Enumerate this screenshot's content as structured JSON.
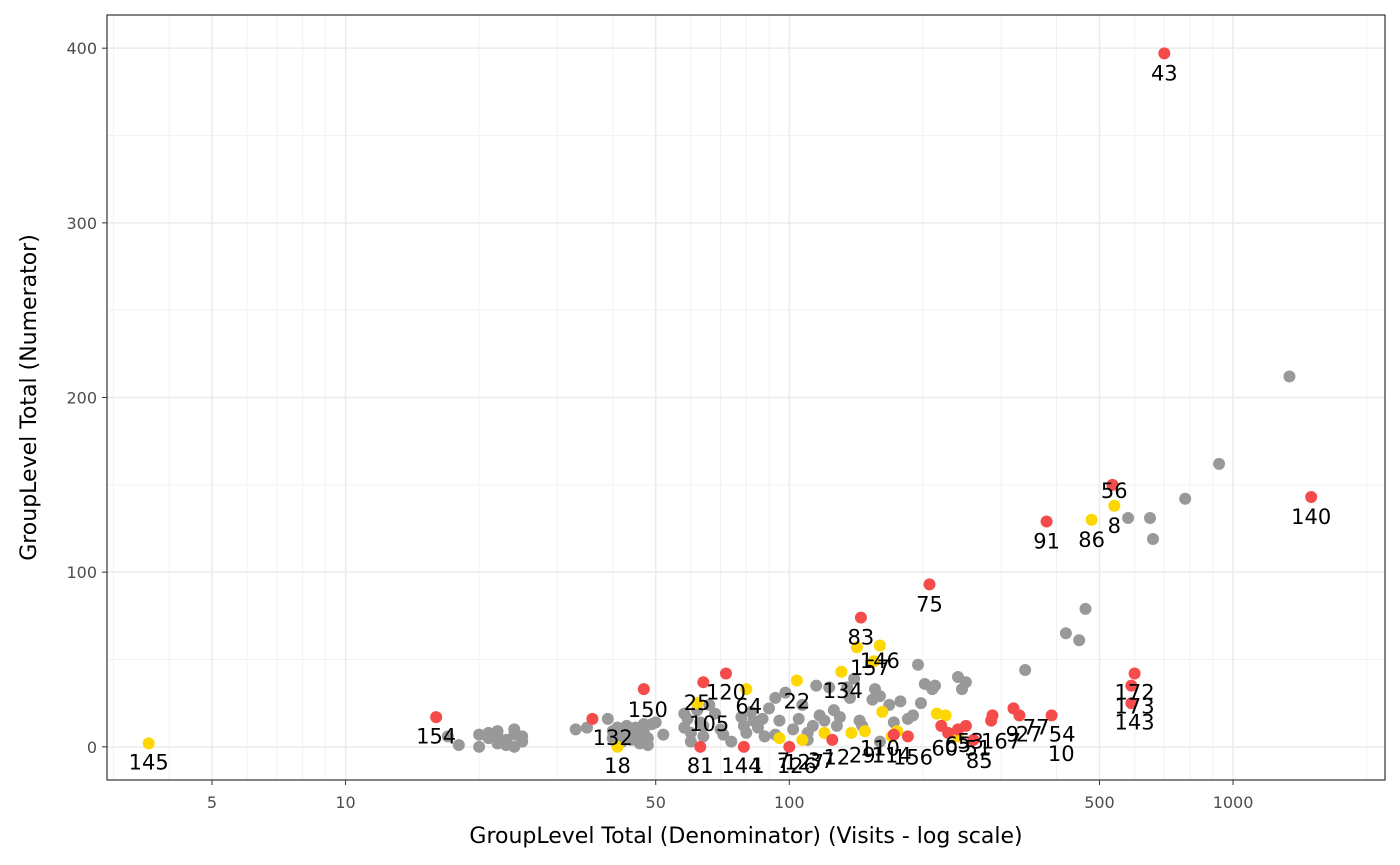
{
  "chart_data": {
    "type": "scatter",
    "title": "",
    "xlabel": "GroupLevel Total (Denominator) (Visits - log scale)",
    "ylabel": "GroupLevel Total (Numerator)",
    "x_scale": "log10",
    "xlim": [
      2.9,
      2200
    ],
    "ylim": [
      -19,
      419
    ],
    "x_ticks": [
      5,
      10,
      50,
      100,
      500,
      1000
    ],
    "x_tick_labels": [
      "5",
      "10",
      "50",
      "100",
      "500",
      "1000"
    ],
    "y_ticks": [
      0,
      100,
      200,
      300,
      400
    ],
    "y_tick_labels": [
      "0",
      "100",
      "200",
      "300",
      "400"
    ],
    "grid": true,
    "legend": "none",
    "colors": {
      "gray": "#999999",
      "yellow": "#FFD700",
      "red": "#F54B4B"
    },
    "series": [
      {
        "color_key": "gray",
        "points": [
          [
            20,
            7
          ],
          [
            20,
            0
          ],
          [
            21,
            5
          ],
          [
            21,
            8
          ],
          [
            22,
            2
          ],
          [
            22,
            6
          ],
          [
            22,
            9
          ],
          [
            23,
            4
          ],
          [
            23,
            1
          ],
          [
            24,
            7
          ],
          [
            24,
            0
          ],
          [
            24,
            10
          ],
          [
            25,
            3
          ],
          [
            25,
            6
          ],
          [
            17,
            6
          ],
          [
            18,
            1
          ],
          [
            33,
            10
          ],
          [
            35,
            11
          ],
          [
            39,
            16
          ],
          [
            40,
            9
          ],
          [
            40,
            5
          ],
          [
            41,
            11
          ],
          [
            42,
            7
          ],
          [
            42,
            3
          ],
          [
            43,
            12
          ],
          [
            44,
            8
          ],
          [
            44,
            4
          ],
          [
            45,
            11
          ],
          [
            46,
            6
          ],
          [
            46,
            2
          ],
          [
            47,
            13
          ],
          [
            47,
            9
          ],
          [
            48,
            5
          ],
          [
            48,
            1
          ],
          [
            49,
            13
          ],
          [
            50,
            14
          ],
          [
            52,
            7
          ],
          [
            58,
            19
          ],
          [
            58,
            11
          ],
          [
            59,
            16
          ],
          [
            60,
            8
          ],
          [
            60,
            3
          ],
          [
            62,
            21
          ],
          [
            63,
            14
          ],
          [
            64,
            12
          ],
          [
            64,
            6
          ],
          [
            66,
            24
          ],
          [
            68,
            19
          ],
          [
            70,
            10
          ],
          [
            71,
            7
          ],
          [
            74,
            3
          ],
          [
            78,
            17
          ],
          [
            79,
            12
          ],
          [
            80,
            8
          ],
          [
            82,
            20
          ],
          [
            83,
            15
          ],
          [
            85,
            11
          ],
          [
            87,
            16
          ],
          [
            88,
            6
          ],
          [
            90,
            22
          ],
          [
            93,
            28
          ],
          [
            95,
            15
          ],
          [
            98,
            31
          ],
          [
            102,
            10
          ],
          [
            105,
            16
          ],
          [
            107,
            24
          ],
          [
            110,
            8
          ],
          [
            113,
            12
          ],
          [
            115,
            35
          ],
          [
            117,
            18
          ],
          [
            120,
            15
          ],
          [
            123,
            34
          ],
          [
            126,
            21
          ],
          [
            128,
            12
          ],
          [
            135,
            34
          ],
          [
            137,
            28
          ],
          [
            140,
            39
          ],
          [
            144,
            15
          ],
          [
            146,
            12
          ],
          [
            154,
            27
          ],
          [
            156,
            33
          ],
          [
            160,
            29
          ],
          [
            168,
            24
          ],
          [
            172,
            14
          ],
          [
            178,
            26
          ],
          [
            185,
            16
          ],
          [
            190,
            18
          ],
          [
            195,
            47
          ],
          [
            198,
            25
          ],
          [
            202,
            36
          ],
          [
            210,
            33
          ],
          [
            213,
            35
          ],
          [
            240,
            40
          ],
          [
            245,
            33
          ],
          [
            250,
            37
          ],
          [
            340,
            44
          ],
          [
            420,
            65
          ],
          [
            450,
            61
          ],
          [
            465,
            79
          ],
          [
            580,
            131
          ],
          [
            650,
            131
          ],
          [
            660,
            119
          ],
          [
            780,
            142
          ],
          [
            930,
            162
          ],
          [
            1340,
            212
          ],
          [
            93,
            7
          ],
          [
            110,
            4
          ],
          [
            130,
            17
          ],
          [
            160,
            3
          ]
        ]
      },
      {
        "color_key": "yellow",
        "points": [
          [
            3.6,
            2
          ],
          [
            41,
            0
          ],
          [
            62,
            25
          ],
          [
            80,
            33
          ],
          [
            95,
            5
          ],
          [
            104,
            38
          ],
          [
            107,
            4
          ],
          [
            120,
            8
          ],
          [
            131,
            43
          ],
          [
            138,
            8
          ],
          [
            142,
            57
          ],
          [
            148,
            9
          ],
          [
            155,
            49
          ],
          [
            160,
            58
          ],
          [
            162,
            20
          ],
          [
            170,
            6
          ],
          [
            175,
            9
          ],
          [
            215,
            19
          ],
          [
            225,
            18
          ],
          [
            240,
            6
          ],
          [
            480,
            130
          ],
          [
            540,
            138
          ]
        ]
      },
      {
        "color_key": "red",
        "points": [
          [
            16,
            17
          ],
          [
            36,
            16
          ],
          [
            47,
            33
          ],
          [
            63,
            0
          ],
          [
            64,
            37
          ],
          [
            72,
            42
          ],
          [
            79,
            0
          ],
          [
            100,
            0
          ],
          [
            125,
            4
          ],
          [
            145,
            74
          ],
          [
            172,
            7
          ],
          [
            185,
            6
          ],
          [
            207,
            93
          ],
          [
            220,
            12
          ],
          [
            228,
            8
          ],
          [
            240,
            10
          ],
          [
            250,
            12
          ],
          [
            260,
            4
          ],
          [
            285,
            15
          ],
          [
            287,
            18
          ],
          [
            320,
            22
          ],
          [
            330,
            18
          ],
          [
            380,
            129
          ],
          [
            390,
            18
          ],
          [
            535,
            150
          ],
          [
            590,
            25
          ],
          [
            590,
            35
          ],
          [
            600,
            42
          ],
          [
            700,
            397
          ],
          [
            1500,
            143
          ]
        ]
      }
    ],
    "labels": [
      {
        "text": "43",
        "x": 700,
        "y": 397,
        "pos": "below"
      },
      {
        "text": "140",
        "x": 1500,
        "y": 143,
        "pos": "below"
      },
      {
        "text": "56",
        "x": 540,
        "y": 138,
        "pos": "above"
      },
      {
        "text": "8",
        "x": 540,
        "y": 138,
        "pos": "below"
      },
      {
        "text": "91",
        "x": 380,
        "y": 129,
        "pos": "below"
      },
      {
        "text": "86",
        "x": 480,
        "y": 130,
        "pos": "below"
      },
      {
        "text": "75",
        "x": 207,
        "y": 93,
        "pos": "below"
      },
      {
        "text": "83",
        "x": 145,
        "y": 74,
        "pos": "below"
      },
      {
        "text": "146",
        "x": 160,
        "y": 49,
        "pos": "center"
      },
      {
        "text": "157",
        "x": 152,
        "y": 45,
        "pos": "center"
      },
      {
        "text": "134",
        "x": 132,
        "y": 32,
        "pos": "center"
      },
      {
        "text": "120",
        "x": 72,
        "y": 31,
        "pos": "center"
      },
      {
        "text": "25",
        "x": 62,
        "y": 25,
        "pos": "center"
      },
      {
        "text": "64",
        "x": 81,
        "y": 23,
        "pos": "center"
      },
      {
        "text": "22",
        "x": 104,
        "y": 26,
        "pos": "center"
      },
      {
        "text": "150",
        "x": 48,
        "y": 21,
        "pos": "center"
      },
      {
        "text": "105",
        "x": 66,
        "y": 13,
        "pos": "center"
      },
      {
        "text": "132",
        "x": 40,
        "y": 5,
        "pos": "center"
      },
      {
        "text": "154",
        "x": 16,
        "y": 6,
        "pos": "center"
      },
      {
        "text": "145",
        "x": 3.6,
        "y": -9,
        "pos": "center"
      },
      {
        "text": "18",
        "x": 41,
        "y": -11,
        "pos": "center"
      },
      {
        "text": "81",
        "x": 63,
        "y": -11,
        "pos": "center"
      },
      {
        "text": "144",
        "x": 78,
        "y": -11,
        "pos": "center"
      },
      {
        "text": "1",
        "x": 85,
        "y": -11,
        "pos": "center"
      },
      {
        "text": "7",
        "x": 97,
        "y": -8,
        "pos": "center"
      },
      {
        "text": "126",
        "x": 104,
        "y": -11,
        "pos": "center"
      },
      {
        "text": "127",
        "x": 108,
        "y": -9,
        "pos": "center"
      },
      {
        "text": "37",
        "x": 118,
        "y": -8,
        "pos": "center"
      },
      {
        "text": "12",
        "x": 128,
        "y": -6,
        "pos": "center"
      },
      {
        "text": "29",
        "x": 146,
        "y": -5,
        "pos": "center"
      },
      {
        "text": "110",
        "x": 160,
        "y": -1,
        "pos": "center"
      },
      {
        "text": "114",
        "x": 170,
        "y": -5,
        "pos": "center"
      },
      {
        "text": "156",
        "x": 190,
        "y": -6,
        "pos": "center"
      },
      {
        "text": "60",
        "x": 224,
        "y": -1,
        "pos": "center"
      },
      {
        "text": "65",
        "x": 240,
        "y": 1,
        "pos": "center"
      },
      {
        "text": "53",
        "x": 256,
        "y": 3,
        "pos": "center"
      },
      {
        "text": "51",
        "x": 266,
        "y": -1,
        "pos": "center"
      },
      {
        "text": "85",
        "x": 268,
        "y": -8,
        "pos": "center"
      },
      {
        "text": "167",
        "x": 300,
        "y": 3,
        "pos": "center"
      },
      {
        "text": "9",
        "x": 318,
        "y": 7,
        "pos": "center"
      },
      {
        "text": "27",
        "x": 347,
        "y": 7,
        "pos": "center"
      },
      {
        "text": "77",
        "x": 360,
        "y": 11,
        "pos": "center"
      },
      {
        "text": "54",
        "x": 412,
        "y": 7,
        "pos": "center"
      },
      {
        "text": "10",
        "x": 410,
        "y": -4,
        "pos": "center"
      },
      {
        "text": "172",
        "x": 600,
        "y": 31,
        "pos": "center"
      },
      {
        "text": "173",
        "x": 600,
        "y": 23,
        "pos": "center"
      },
      {
        "text": "143",
        "x": 600,
        "y": 14,
        "pos": "center"
      }
    ]
  }
}
